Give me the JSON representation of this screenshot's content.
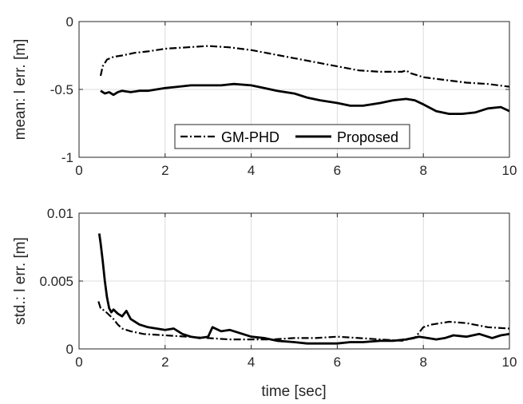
{
  "chart_data": [
    {
      "type": "line",
      "title": "",
      "xlabel": "",
      "ylabel": "mean: l err. [m]",
      "xlim": [
        0,
        10
      ],
      "ylim": [
        -1,
        0
      ],
      "xticks": [
        0,
        2,
        4,
        6,
        8,
        10
      ],
      "xtick_labels": [
        "0",
        "2",
        "4",
        "6",
        "8",
        "10"
      ],
      "yticks": [
        -1,
        -0.5,
        0
      ],
      "ytick_labels": [
        "-1",
        "-0.5",
        "0"
      ],
      "grid": true,
      "legend": {
        "placement": "bottom-center",
        "entries": [
          "GM-PHD",
          "Proposed"
        ]
      },
      "series": [
        {
          "name": "GM-PHD",
          "style": "dashdot",
          "x": [
            0.5,
            0.55,
            0.65,
            0.8,
            1.0,
            1.3,
            1.6,
            2.0,
            2.5,
            3.0,
            3.5,
            4.0,
            4.5,
            5.0,
            5.5,
            6.0,
            6.5,
            7.0,
            7.5,
            7.6,
            7.7,
            8.0,
            8.5,
            9.0,
            9.5,
            10.0
          ],
          "y": [
            -0.4,
            -0.33,
            -0.28,
            -0.26,
            -0.25,
            -0.23,
            -0.22,
            -0.2,
            -0.19,
            -0.18,
            -0.19,
            -0.21,
            -0.24,
            -0.27,
            -0.3,
            -0.33,
            -0.36,
            -0.37,
            -0.37,
            -0.36,
            -0.38,
            -0.41,
            -0.43,
            -0.45,
            -0.46,
            -0.48
          ]
        },
        {
          "name": "Proposed",
          "style": "solid",
          "x": [
            0.5,
            0.6,
            0.7,
            0.8,
            0.9,
            1.0,
            1.2,
            1.4,
            1.6,
            1.8,
            2.0,
            2.3,
            2.6,
            3.0,
            3.3,
            3.6,
            4.0,
            4.3,
            4.6,
            5.0,
            5.3,
            5.6,
            6.0,
            6.3,
            6.6,
            7.0,
            7.3,
            7.6,
            7.8,
            8.0,
            8.3,
            8.6,
            8.9,
            9.2,
            9.5,
            9.8,
            10.0
          ],
          "y": [
            -0.51,
            -0.53,
            -0.52,
            -0.54,
            -0.52,
            -0.51,
            -0.52,
            -0.51,
            -0.51,
            -0.5,
            -0.49,
            -0.48,
            -0.47,
            -0.47,
            -0.47,
            -0.46,
            -0.47,
            -0.49,
            -0.51,
            -0.53,
            -0.56,
            -0.58,
            -0.6,
            -0.62,
            -0.62,
            -0.6,
            -0.58,
            -0.57,
            -0.58,
            -0.61,
            -0.66,
            -0.68,
            -0.68,
            -0.67,
            -0.64,
            -0.63,
            -0.66
          ]
        }
      ]
    },
    {
      "type": "line",
      "title": "",
      "xlabel": "time [sec]",
      "ylabel": "std.: l err. [m]",
      "xlim": [
        0,
        10
      ],
      "ylim": [
        0,
        0.01
      ],
      "xticks": [
        0,
        2,
        4,
        6,
        8,
        10
      ],
      "xtick_labels": [
        "0",
        "2",
        "4",
        "6",
        "8",
        "10"
      ],
      "yticks": [
        0,
        0.005,
        0.01
      ],
      "ytick_labels": [
        "0",
        "0.005",
        "0.01"
      ],
      "grid": true,
      "series": [
        {
          "name": "GM-PHD",
          "style": "dashdot",
          "x": [
            0.45,
            0.5,
            0.6,
            0.7,
            0.8,
            0.9,
            1.0,
            1.2,
            1.5,
            2.0,
            2.5,
            3.0,
            3.5,
            4.0,
            4.5,
            5.0,
            5.5,
            6.0,
            6.5,
            7.0,
            7.5,
            7.8,
            8.0,
            8.2,
            8.4,
            8.6,
            9.0,
            9.5,
            10.0
          ],
          "y": [
            0.0035,
            0.003,
            0.0028,
            0.0025,
            0.0022,
            0.0018,
            0.0015,
            0.0013,
            0.0011,
            0.001,
            0.0009,
            0.0008,
            0.0007,
            0.0007,
            0.0007,
            0.0008,
            0.0008,
            0.0009,
            0.0008,
            0.0007,
            0.0006,
            0.0008,
            0.0016,
            0.0018,
            0.0019,
            0.002,
            0.0019,
            0.0016,
            0.0015
          ]
        },
        {
          "name": "Proposed",
          "style": "solid",
          "x": [
            0.47,
            0.5,
            0.55,
            0.6,
            0.65,
            0.7,
            0.75,
            0.8,
            0.9,
            1.0,
            1.1,
            1.2,
            1.4,
            1.6,
            1.8,
            2.0,
            2.2,
            2.4,
            2.6,
            2.8,
            3.0,
            3.1,
            3.3,
            3.5,
            3.7,
            4.0,
            4.3,
            4.6,
            5.0,
            5.3,
            5.6,
            6.0,
            6.3,
            6.6,
            7.0,
            7.3,
            7.6,
            7.9,
            8.1,
            8.3,
            8.5,
            8.7,
            9.0,
            9.3,
            9.6,
            9.8,
            10.0
          ],
          "y": [
            0.0085,
            0.0078,
            0.0065,
            0.005,
            0.0038,
            0.003,
            0.0027,
            0.0029,
            0.0026,
            0.0024,
            0.0028,
            0.0022,
            0.0018,
            0.0016,
            0.0015,
            0.0014,
            0.0015,
            0.0011,
            0.0009,
            0.0008,
            0.0009,
            0.0016,
            0.0013,
            0.0014,
            0.0012,
            0.0009,
            0.0008,
            0.0006,
            0.0005,
            0.0004,
            0.0004,
            0.0004,
            0.0005,
            0.0005,
            0.0006,
            0.0006,
            0.0007,
            0.0009,
            0.0008,
            0.0007,
            0.0008,
            0.001,
            0.0009,
            0.0011,
            0.0008,
            0.001,
            0.0011
          ]
        }
      ]
    }
  ]
}
